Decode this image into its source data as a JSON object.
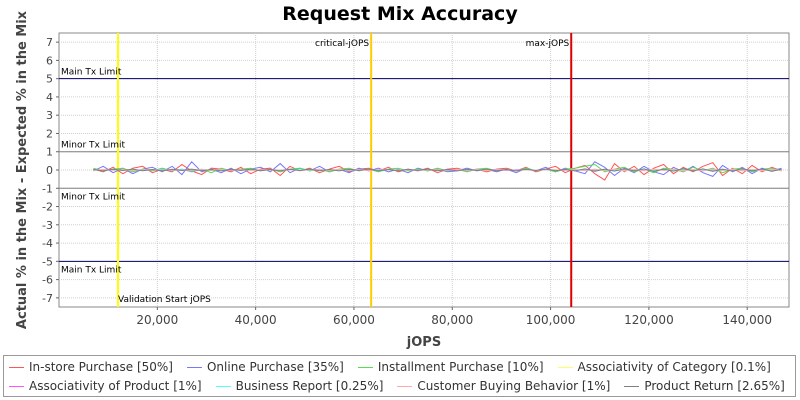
{
  "chart_data": {
    "type": "line",
    "title": "Request Mix Accuracy",
    "xlabel": "jOPS",
    "ylabel": "Actual % in the Mix - Expected % in the Mix",
    "xlim": [
      0,
      148500
    ],
    "ylim": [
      -7.5,
      7.5
    ],
    "xticks": [
      20000,
      40000,
      60000,
      80000,
      100000,
      120000,
      140000
    ],
    "xtick_labels": [
      "20,000",
      "40,000",
      "60,000",
      "80,000",
      "100,000",
      "120,000",
      "140,000"
    ],
    "yticks": [
      7,
      6,
      5,
      4,
      3,
      2,
      1,
      0,
      -1,
      -2,
      -3,
      -4,
      -5,
      -6,
      -7
    ],
    "grid": true,
    "legend_position": "bottom",
    "horizontal_lines": [
      {
        "y": 5,
        "label": "Main Tx Limit",
        "color": "#000066"
      },
      {
        "y": 1,
        "label": "Minor Tx Limit",
        "color": "#808080"
      },
      {
        "y": -1,
        "label": "Minor Tx Limit",
        "color": "#808080"
      },
      {
        "y": -5,
        "label": "Main Tx Limit",
        "color": "#000066"
      }
    ],
    "vertical_lines": [
      {
        "x": 12000,
        "label": "Validation Start jOPS",
        "color": "#ffff00"
      },
      {
        "x": 63500,
        "label": "critical-jOPS",
        "color": "#ffcc00"
      },
      {
        "x": 104200,
        "label": "max-jOPS",
        "color": "#dd0000"
      }
    ],
    "x": [
      7000,
      9000,
      11000,
      13000,
      15000,
      17000,
      19000,
      21000,
      23000,
      25000,
      27000,
      29000,
      31000,
      33000,
      35000,
      37000,
      39000,
      41000,
      43000,
      45000,
      47000,
      49000,
      51000,
      53000,
      55000,
      57000,
      59000,
      61000,
      63000,
      65000,
      67000,
      69000,
      71000,
      73000,
      75000,
      77000,
      79000,
      81000,
      83000,
      85000,
      87000,
      89000,
      91000,
      93000,
      95000,
      97000,
      99000,
      101000,
      103000,
      105000,
      107000,
      109000,
      111000,
      113000,
      115000,
      117000,
      119000,
      121000,
      123000,
      125000,
      127000,
      129000,
      131000,
      133000,
      135000,
      137000,
      139000,
      141000,
      143000,
      145000,
      147000
    ],
    "series": [
      {
        "name": "In-store Purchase [50%]",
        "color": "#ff5555",
        "values": [
          0.05,
          -0.1,
          0.15,
          -0.2,
          0.1,
          0.2,
          -0.15,
          0.05,
          -0.1,
          0.3,
          -0.05,
          -0.25,
          0.1,
          0.05,
          -0.1,
          0.15,
          -0.2,
          0.05,
          0.1,
          -0.3,
          0.2,
          -0.05,
          0.1,
          -0.15,
          0.05,
          0.2,
          -0.1,
          0.05,
          0.1,
          -0.05,
          0.15,
          -0.1,
          0.05,
          -0.05,
          0.1,
          -0.15,
          0.05,
          0.1,
          -0.05,
          0.05,
          -0.1,
          0.05,
          0.1,
          -0.05,
          0.15,
          -0.1,
          0.05,
          0.2,
          -0.15,
          0.1,
          0.25,
          -0.2,
          -0.55,
          0.35,
          -0.1,
          0.2,
          -0.25,
          0.1,
          0.3,
          -0.2,
          0.15,
          -0.1,
          0.2,
          0.4,
          -0.3,
          0.1,
          -0.2,
          0.25,
          -0.1,
          0.15,
          -0.05
        ]
      },
      {
        "name": "Online Purchase [35%]",
        "color": "#7777ff",
        "values": [
          -0.05,
          0.2,
          -0.15,
          0.1,
          -0.2,
          0.05,
          0.15,
          -0.1,
          0.2,
          -0.25,
          0.45,
          -0.1,
          0.05,
          -0.15,
          0.1,
          -0.2,
          0.05,
          0.15,
          -0.1,
          0.35,
          -0.15,
          0.1,
          -0.05,
          0.2,
          -0.1,
          0.05,
          -0.15,
          0.1,
          -0.05,
          0.1,
          -0.1,
          0.05,
          -0.15,
          0.1,
          -0.05,
          0.05,
          -0.1,
          -0.05,
          0.1,
          -0.05,
          0.05,
          -0.1,
          0.05,
          -0.15,
          0.1,
          -0.05,
          0.15,
          -0.1,
          0.1,
          -0.05,
          -0.2,
          0.45,
          0.15,
          -0.3,
          0.1,
          -0.15,
          0.2,
          -0.1,
          -0.25,
          0.15,
          -0.1,
          0.2,
          -0.15,
          -0.35,
          0.25,
          -0.1,
          0.15,
          -0.2,
          0.1,
          -0.05,
          0.1
        ]
      },
      {
        "name": "Installment Purchase [10%]",
        "color": "#55dd55",
        "values": [
          0.1,
          -0.05,
          0.05,
          0.1,
          -0.1,
          0.05,
          -0.05,
          0.1,
          -0.05,
          0.05,
          -0.1,
          0.05,
          -0.15,
          0.1,
          -0.05,
          0.05,
          0.1,
          -0.05,
          0.05,
          -0.1,
          0.05,
          0.1,
          -0.05,
          0.05,
          -0.1,
          0.05,
          0.1,
          -0.05,
          0.05,
          -0.1,
          0.05,
          0.1,
          -0.05,
          0.05,
          -0.05,
          0.1,
          -0.05,
          0.05,
          -0.1,
          0.05,
          0.1,
          -0.05,
          0.05,
          -0.05,
          0.1,
          -0.05,
          0.05,
          -0.1,
          0.05,
          0.1,
          0.2,
          0.3,
          -0.1,
          0.05,
          0.15,
          -0.1,
          0.05,
          -0.15,
          0.1,
          0.05,
          -0.1,
          0.15,
          -0.05,
          0.1,
          -0.15,
          0.05,
          0.1,
          -0.1,
          0.05,
          0.1,
          -0.05
        ]
      },
      {
        "name": "Associativity of Category [0.1%]",
        "color": "#ffff66",
        "values": [
          0,
          0,
          0,
          0,
          0,
          0,
          0,
          0,
          0,
          0,
          0,
          0,
          0,
          0,
          0,
          0,
          0,
          0,
          0,
          0,
          0,
          0,
          0,
          0,
          0,
          0,
          0,
          0,
          0,
          0,
          0,
          0,
          0,
          0,
          0,
          0,
          0,
          0,
          0,
          0,
          0,
          0,
          0,
          0,
          0,
          0,
          0,
          0,
          0,
          0,
          0,
          0,
          0,
          0,
          0,
          0,
          0,
          0,
          0,
          0,
          0,
          0,
          0,
          0,
          0,
          0,
          0,
          0,
          0,
          0,
          0
        ]
      },
      {
        "name": "Associativity of Product [1%]",
        "color": "#ff55ff",
        "values": [
          0.02,
          -0.02,
          0.03,
          -0.01,
          0.02,
          -0.03,
          0.01,
          0.02,
          -0.02,
          0.03,
          -0.05,
          0.02,
          -0.01,
          0.03,
          -0.02,
          0.01,
          0.02,
          -0.03,
          0.02,
          -0.01,
          0.03,
          -0.02,
          0.01,
          0.02,
          -0.03,
          0.02,
          -0.01,
          0.03,
          -0.02,
          0.01,
          0.02,
          -0.03,
          0.02,
          -0.01,
          0.03,
          -0.02,
          0.01,
          0.02,
          -0.03,
          0.02,
          -0.01,
          0.03,
          -0.02,
          0.01,
          0.02,
          -0.03,
          0.02,
          -0.01,
          0.03,
          -0.02,
          0.05,
          -0.04,
          0.03,
          -0.05,
          0.04,
          -0.02,
          0.03,
          -0.04,
          0.02,
          -0.03,
          0.04,
          -0.02,
          0.03,
          -0.04,
          0.02,
          -0.03,
          0.04,
          -0.02,
          0.03,
          -0.04,
          0.02
        ]
      },
      {
        "name": "Business Report [0.25%]",
        "color": "#55ffff",
        "values": [
          0.01,
          -0.01,
          0.02,
          -0.01,
          0.01,
          -0.02,
          0.01,
          0.01,
          -0.01,
          0.02,
          -0.01,
          0.01,
          -0.02,
          0.01,
          0.01,
          -0.01,
          0.02,
          -0.01,
          0.01,
          -0.02,
          0.01,
          0.01,
          -0.01,
          0.02,
          -0.01,
          0.01,
          -0.02,
          0.01,
          0.01,
          -0.01,
          0.02,
          -0.01,
          0.01,
          -0.02,
          0.01,
          0.01,
          -0.01,
          0.02,
          -0.01,
          0.01,
          -0.02,
          0.01,
          0.01,
          -0.01,
          0.02,
          -0.01,
          0.01,
          -0.02,
          0.01,
          0.01,
          -0.01,
          0.02,
          -0.01,
          0.01,
          -0.02,
          0.01,
          0.01,
          -0.01,
          0.02,
          -0.01,
          0.01,
          -0.02,
          0.01,
          0.01,
          -0.01,
          0.02,
          -0.01,
          0.01,
          -0.02,
          0.01,
          0.01
        ]
      },
      {
        "name": "Customer Buying Behavior [1%]",
        "color": "#ffaaaa",
        "values": [
          -0.02,
          0.03,
          -0.01,
          0.02,
          -0.03,
          0.01,
          0.02,
          -0.02,
          0.01,
          -0.03,
          0.02,
          0.01,
          -0.02,
          0.03,
          -0.01,
          0.02,
          -0.03,
          0.01,
          0.02,
          -0.02,
          0.01,
          -0.03,
          0.02,
          0.01,
          -0.02,
          0.03,
          -0.01,
          0.02,
          -0.03,
          0.01,
          0.02,
          -0.02,
          0.01,
          -0.03,
          0.02,
          0.01,
          -0.02,
          0.03,
          -0.01,
          0.02,
          -0.03,
          0.01,
          0.02,
          -0.02,
          0.01,
          -0.03,
          0.02,
          0.01,
          -0.02,
          0.03,
          -0.04,
          0.05,
          -0.03,
          0.04,
          -0.05,
          0.03,
          -0.04,
          0.05,
          -0.03,
          0.04,
          -0.05,
          0.03,
          -0.04,
          0.05,
          -0.03,
          0.04,
          -0.05,
          0.03,
          -0.04,
          0.05,
          -0.03
        ]
      },
      {
        "name": "Product Return [2.65%]",
        "color": "#808080",
        "values": [
          0.03,
          -0.05,
          0.04,
          -0.03,
          0.05,
          -0.04,
          0.03,
          -0.05,
          0.04,
          -0.03,
          0.05,
          -0.04,
          0.03,
          -0.05,
          0.04,
          -0.03,
          0.05,
          -0.04,
          0.03,
          -0.05,
          0.04,
          -0.03,
          0.05,
          -0.04,
          0.03,
          -0.05,
          0.04,
          -0.03,
          0.05,
          -0.04,
          0.03,
          -0.05,
          0.04,
          -0.03,
          0.05,
          -0.04,
          0.03,
          -0.05,
          0.04,
          -0.03,
          0.05,
          -0.04,
          0.03,
          -0.05,
          0.04,
          -0.03,
          0.05,
          -0.04,
          0.03,
          -0.05,
          0.06,
          -0.07,
          0.05,
          -0.06,
          0.07,
          -0.05,
          0.06,
          -0.07,
          0.05,
          -0.06,
          0.07,
          -0.05,
          0.06,
          -0.07,
          0.05,
          -0.06,
          0.07,
          -0.05,
          0.06,
          -0.07,
          0.05
        ]
      }
    ]
  }
}
